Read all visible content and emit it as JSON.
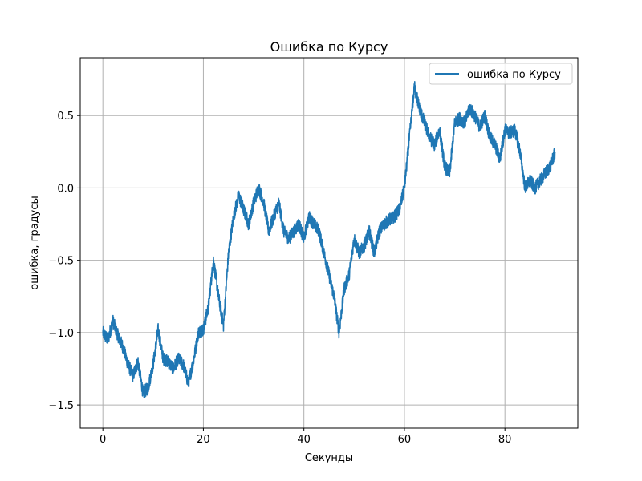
{
  "chart_data": {
    "type": "line",
    "title": "Ошибка по Курсу",
    "xlabel": "Секунды",
    "ylabel": "ошибка, градусы",
    "xlim": [
      -4.5,
      94.5
    ],
    "ylim": [
      -1.66,
      0.9
    ],
    "xticks": [
      0,
      20,
      40,
      60,
      80
    ],
    "yticks": [
      -1.5,
      -1.0,
      -0.5,
      0.0,
      0.5
    ],
    "ytick_labels": [
      "−1.5",
      "−1.0",
      "−0.5",
      "0.0",
      "0.5"
    ],
    "grid": true,
    "legend_position": "top-right",
    "series": [
      {
        "name": "ошибка по Курсу",
        "color": "#1f77b4",
        "x": [
          0,
          1,
          2,
          3,
          4,
          5,
          6,
          7,
          8,
          9,
          10,
          11,
          12,
          13,
          14,
          15,
          16,
          17,
          18,
          19,
          20,
          21,
          22,
          23,
          24,
          25,
          26,
          27,
          28,
          29,
          30,
          31,
          32,
          33,
          34,
          35,
          36,
          37,
          38,
          39,
          40,
          41,
          42,
          43,
          44,
          45,
          46,
          47,
          48,
          49,
          50,
          51,
          52,
          53,
          54,
          55,
          56,
          57,
          58,
          59,
          60,
          61,
          62,
          63,
          64,
          65,
          66,
          67,
          68,
          69,
          70,
          71,
          72,
          73,
          74,
          75,
          76,
          77,
          78,
          79,
          80,
          81,
          82,
          83,
          84,
          85,
          86,
          87,
          88,
          89,
          90
        ],
        "y": [
          -1.0,
          -1.05,
          -0.92,
          -1.02,
          -1.1,
          -1.22,
          -1.3,
          -1.2,
          -1.42,
          -1.38,
          -1.22,
          -0.98,
          -1.18,
          -1.2,
          -1.25,
          -1.18,
          -1.22,
          -1.35,
          -1.2,
          -1.0,
          -0.98,
          -0.82,
          -0.5,
          -0.75,
          -0.95,
          -0.45,
          -0.2,
          -0.05,
          -0.15,
          -0.25,
          -0.1,
          0.0,
          -0.1,
          -0.3,
          -0.2,
          -0.1,
          -0.3,
          -0.35,
          -0.3,
          -0.25,
          -0.35,
          -0.2,
          -0.25,
          -0.3,
          -0.45,
          -0.6,
          -0.75,
          -1.0,
          -0.7,
          -0.6,
          -0.35,
          -0.45,
          -0.4,
          -0.3,
          -0.45,
          -0.3,
          -0.25,
          -0.22,
          -0.2,
          -0.15,
          0.0,
          0.35,
          0.7,
          0.55,
          0.45,
          0.35,
          0.3,
          0.4,
          0.15,
          0.1,
          0.45,
          0.48,
          0.45,
          0.55,
          0.5,
          0.42,
          0.5,
          0.35,
          0.3,
          0.2,
          0.4,
          0.38,
          0.4,
          0.25,
          0.0,
          0.05,
          0.0,
          0.05,
          0.1,
          0.15,
          0.25
        ]
      }
    ]
  }
}
